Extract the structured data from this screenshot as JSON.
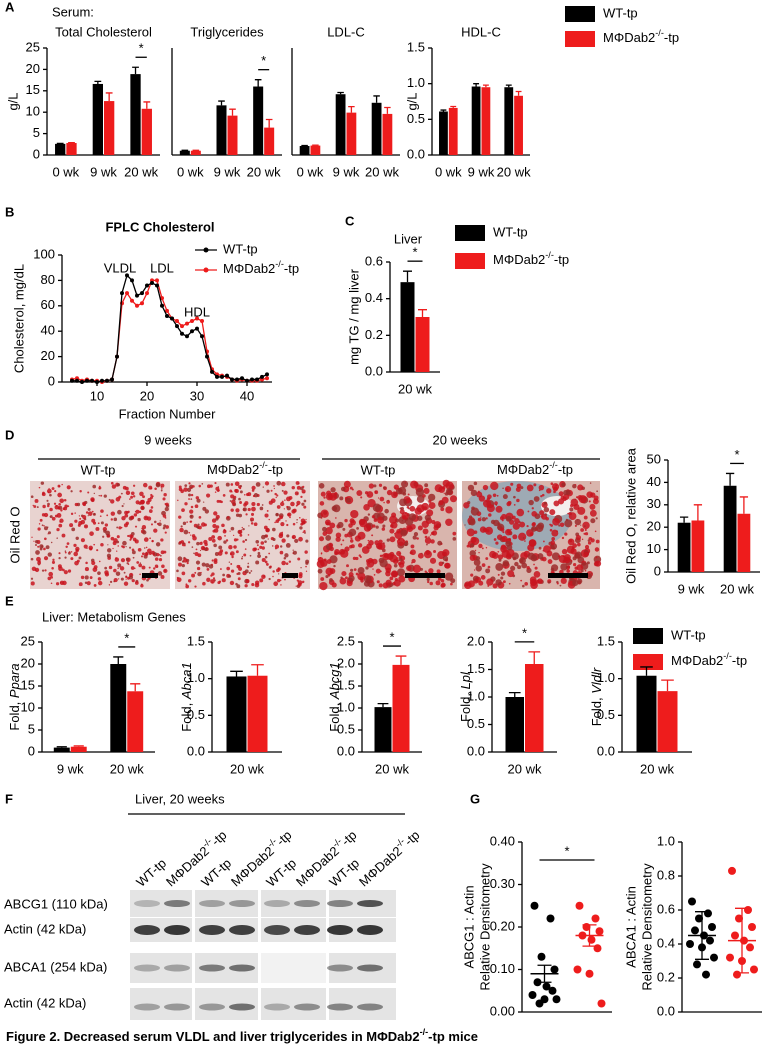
{
  "chart_data": [
    {
      "type": "bar",
      "title": "Total Cholesterol",
      "ylabel": "g/L",
      "categories": [
        "0 wk",
        "9 wk",
        "20 wk"
      ],
      "ylim": [
        0,
        25
      ],
      "yticks": [
        0,
        5,
        10,
        15,
        20,
        25
      ],
      "annotation": "*",
      "series": [
        {
          "color": "#000000",
          "values": [
            2.6,
            16.6,
            18.9
          ],
          "errors": [
            0.1,
            0.6,
            1.6
          ]
        },
        {
          "color": "#ee1c1c",
          "values": [
            2.8,
            12.6,
            10.8
          ],
          "errors": [
            0.1,
            1.9,
            1.6
          ]
        }
      ]
    },
    {
      "type": "bar",
      "title": "Triglycerides",
      "categories": [
        "0 wk",
        "9 wk",
        "20 wk"
      ],
      "ylim": [
        0,
        25
      ],
      "annotation": "*",
      "series": [
        {
          "color": "#000000",
          "values": [
            1.0,
            11.6,
            16.0
          ],
          "errors": [
            0.1,
            1.0,
            1.6
          ]
        },
        {
          "color": "#ee1c1c",
          "values": [
            1.0,
            9.2,
            6.4
          ],
          "errors": [
            0.1,
            1.5,
            1.9
          ]
        }
      ]
    },
    {
      "type": "bar",
      "title": "LDL-C",
      "categories": [
        "0 wk",
        "9 wk",
        "20 wk"
      ],
      "ylim": [
        0,
        25
      ],
      "series": [
        {
          "color": "#000000",
          "values": [
            2.1,
            14.2,
            12.2
          ],
          "errors": [
            0.1,
            0.4,
            1.6
          ]
        },
        {
          "color": "#ee1c1c",
          "values": [
            2.2,
            9.9,
            9.6
          ],
          "errors": [
            0.1,
            1.4,
            1.5
          ]
        }
      ]
    },
    {
      "type": "bar",
      "title": "HDL-C",
      "ylabel": "g/L",
      "categories": [
        "0 wk",
        "9 wk",
        "20 wk"
      ],
      "ylim": [
        0,
        1.5
      ],
      "yticks": [
        {
          "value": 0,
          "label": "0.0"
        },
        0.5,
        {
          "value": 1,
          "label": "1.0"
        },
        1.5
      ],
      "legend": "top-right",
      "series": [
        {
          "name": "WT-tp",
          "color": "#000000",
          "values": [
            0.61,
            0.96,
            0.95
          ],
          "errors": [
            0.02,
            0.04,
            0.03
          ]
        },
        {
          "name": "MΦDab2-/--tp",
          "color": "#ee1c1c",
          "values": [
            0.66,
            0.95,
            0.83
          ],
          "errors": [
            0.02,
            0.03,
            0.06
          ]
        }
      ]
    },
    {
      "type": "line",
      "title": "FPLC Cholesterol",
      "ylabel": "Cholesterol, mg/dL",
      "xlabel": "Fraction Number",
      "xlim": [
        3,
        45
      ],
      "ylim": [
        0,
        100
      ],
      "xticks": [
        10,
        20,
        30,
        40
      ],
      "yticks": [
        0,
        20,
        40,
        60,
        80,
        100
      ],
      "legend": "top-right",
      "annotations": [
        "VLDL",
        "LDL",
        "HDL"
      ],
      "x": [
        5,
        6,
        7,
        8,
        9,
        10,
        11,
        12,
        13,
        14,
        15,
        16,
        17,
        18,
        19,
        20,
        21,
        22,
        23,
        24,
        25,
        26,
        27,
        28,
        29,
        30,
        31,
        32,
        33,
        34,
        35,
        36,
        37,
        38,
        39,
        40,
        41,
        42,
        43,
        44
      ],
      "series": [
        {
          "name": "WT-tp",
          "color": "#000000",
          "values": [
            1,
            1,
            0,
            1,
            1,
            0,
            1,
            1,
            2,
            20,
            70,
            84,
            80,
            68,
            70,
            76,
            78,
            76,
            60,
            52,
            50,
            44,
            38,
            36,
            40,
            42,
            36,
            20,
            8,
            4,
            4,
            5,
            2,
            2,
            3,
            1,
            2,
            2,
            4,
            6
          ]
        },
        {
          "name": "MΦDab2-/--tp",
          "color": "#ee1c1c",
          "values": [
            2,
            3,
            1,
            2,
            1,
            1,
            0,
            1,
            2,
            20,
            62,
            70,
            64,
            60,
            62,
            70,
            80,
            80,
            66,
            56,
            50,
            48,
            44,
            46,
            48,
            50,
            48,
            24,
            10,
            6,
            5,
            4,
            2,
            1,
            2,
            1,
            1,
            1,
            2,
            3
          ]
        }
      ]
    },
    {
      "type": "bar",
      "title": "Liver",
      "ylabel": "mg TG / mg liver",
      "categories": [
        "20 wk"
      ],
      "ylim": [
        0,
        0.6
      ],
      "yticks": [
        {
          "value": 0,
          "label": "0.0"
        },
        0.2,
        0.4,
        0.6
      ],
      "annotation": "*",
      "legend": "top-right",
      "series": [
        {
          "name": "WT-tp",
          "color": "#000000",
          "values": [
            0.49
          ],
          "errors": [
            0.06
          ]
        },
        {
          "name": "MΦDab2-/--tp",
          "color": "#ee1c1c",
          "values": [
            0.3
          ],
          "errors": [
            0.04
          ]
        }
      ]
    },
    {
      "type": "bar",
      "ylabel": "Oil Red O, relative area",
      "categories": [
        "9 wk",
        "20 wk"
      ],
      "ylim": [
        0,
        50
      ],
      "yticks": [
        0,
        10,
        20,
        30,
        40,
        50
      ],
      "annotation": "*",
      "series": [
        {
          "color": "#000000",
          "values": [
            22,
            38.5
          ],
          "errors": [
            2.5,
            5.5
          ]
        },
        {
          "color": "#ee1c1c",
          "values": [
            23,
            26
          ],
          "errors": [
            7,
            7.5
          ]
        }
      ]
    },
    {
      "type": "bar",
      "ylabel": "Fold, Ppara",
      "categories": [
        "9 wk",
        "20 wk"
      ],
      "ylim": [
        0,
        25
      ],
      "yticks": [
        0,
        5,
        10,
        15,
        20,
        25
      ],
      "annotation": "*",
      "series": [
        {
          "color": "#000000",
          "values": [
            1.0,
            20.0
          ],
          "errors": [
            0.2,
            1.6
          ]
        },
        {
          "color": "#ee1c1c",
          "values": [
            1.2,
            13.8
          ],
          "errors": [
            0.2,
            1.7
          ]
        }
      ]
    },
    {
      "type": "bar",
      "ylabel": "Fold, Abca1",
      "categories": [
        "20 wk"
      ],
      "ylim": [
        0,
        1.5
      ],
      "yticks": [
        {
          "value": 0,
          "label": "0.0"
        },
        0.5,
        {
          "value": 1,
          "label": "1.0"
        },
        1.5
      ],
      "series": [
        {
          "color": "#000000",
          "values": [
            1.03
          ],
          "errors": [
            0.07
          ]
        },
        {
          "color": "#ee1c1c",
          "values": [
            1.04
          ],
          "errors": [
            0.15
          ]
        }
      ]
    },
    {
      "type": "bar",
      "ylabel": "Fold, Abcg1",
      "categories": [
        "20 wk"
      ],
      "ylim": [
        0,
        2.5
      ],
      "yticks": [
        {
          "value": 0,
          "label": "0.0"
        },
        0.5,
        {
          "value": 1,
          "label": "1.0"
        },
        1.5,
        {
          "value": 2,
          "label": "2.0"
        },
        2.5
      ],
      "annotation": "*",
      "series": [
        {
          "color": "#000000",
          "values": [
            1.02
          ],
          "errors": [
            0.08
          ]
        },
        {
          "color": "#ee1c1c",
          "values": [
            1.98
          ],
          "errors": [
            0.2
          ]
        }
      ]
    },
    {
      "type": "bar",
      "ylabel": "Fold, Lpl",
      "categories": [
        "20 wk"
      ],
      "ylim": [
        0,
        2.0
      ],
      "yticks": [
        {
          "value": 0,
          "label": "0.0"
        },
        0.5,
        {
          "value": 1,
          "label": "1.0"
        },
        1.5,
        {
          "value": 2,
          "label": "2.0"
        }
      ],
      "annotation": "*",
      "series": [
        {
          "color": "#000000",
          "values": [
            1.0
          ],
          "errors": [
            0.08
          ]
        },
        {
          "color": "#ee1c1c",
          "values": [
            1.6
          ],
          "errors": [
            0.22
          ]
        }
      ]
    },
    {
      "type": "bar",
      "ylabel": "Fold, Vldlr",
      "categories": [
        "20 wk"
      ],
      "ylim": [
        0,
        1.5
      ],
      "yticks": [
        {
          "value": 0,
          "label": "0.0"
        },
        0.5,
        {
          "value": 1,
          "label": "1.0"
        },
        1.5
      ],
      "legend": "top-right",
      "series": [
        {
          "name": "WT-tp",
          "color": "#000000",
          "values": [
            1.04
          ],
          "errors": [
            0.12
          ]
        },
        {
          "name": "MΦDab2-/--tp",
          "color": "#ee1c1c",
          "values": [
            0.83
          ],
          "errors": [
            0.15
          ]
        }
      ]
    },
    {
      "type": "dotplot",
      "ylabel": [
        "ABCG1 : Actin",
        "Relative Densitometry"
      ],
      "ylim": [
        0,
        0.4
      ],
      "yticks": [
        {
          "value": 0,
          "label": "0.00"
        },
        {
          "value": 0.1,
          "label": "0.10"
        },
        {
          "value": 0.2,
          "label": "0.20"
        },
        {
          "value": 0.3,
          "label": "0.30"
        },
        {
          "value": 0.4,
          "label": "0.40"
        }
      ],
      "annotation": "*",
      "series": [
        {
          "color": "#000000",
          "values": [
            0.25,
            0.22,
            0.13,
            0.1,
            0.07,
            0.06,
            0.05,
            0.04,
            0.03,
            0.03,
            0.02
          ],
          "mean": 0.09,
          "error": 0.02
        },
        {
          "color": "#ee1c1c",
          "values": [
            0.25,
            0.22,
            0.2,
            0.19,
            0.18,
            0.17,
            0.15,
            0.1,
            0.09,
            0.02
          ],
          "mean": 0.18,
          "error": 0.025
        }
      ]
    },
    {
      "type": "dotplot",
      "ylabel": [
        "ABCA1 : Actin",
        "Relative Densitometry"
      ],
      "ylim": [
        0,
        1.0
      ],
      "yticks": [
        {
          "value": 0,
          "label": "0.0"
        },
        0.2,
        0.4,
        0.6,
        0.8,
        {
          "value": 1,
          "label": "1.0"
        }
      ],
      "series": [
        {
          "color": "#000000",
          "values": [
            0.65,
            0.58,
            0.55,
            0.5,
            0.48,
            0.45,
            0.42,
            0.4,
            0.38,
            0.32,
            0.28,
            0.22
          ],
          "mean": 0.45,
          "error": 0.14
        },
        {
          "color": "#ee1c1c",
          "values": [
            0.83,
            0.6,
            0.55,
            0.5,
            0.45,
            0.42,
            0.38,
            0.32,
            0.3,
            0.25,
            0.22
          ],
          "mean": 0.42,
          "error": 0.19
        }
      ]
    }
  ],
  "figure": {
    "panels": [
      "A",
      "B",
      "C",
      "D",
      "E",
      "F",
      "G"
    ],
    "serum_label": "Serum:",
    "genes_title": "Liver: Metabolism Genes",
    "caption": "Figure 2. Decreased serum VLDL and liver triglycerides in MΦDab2-/--tp mice"
  },
  "panel_d": {
    "headers": [
      "9 weeks",
      "20 weeks"
    ],
    "groups": [
      "WT-tp",
      "MΦDab2-/--tp",
      "WT-tp",
      "MΦDab2-/--tp"
    ],
    "stain": "Oil Red O"
  },
  "panel_f": {
    "title": "Liver, 20 weeks",
    "lanes": [
      "WT-tp",
      "MΦDab2-/--tp",
      "WT-tp",
      "MΦDab2-/--tp",
      "WT-tp",
      "MΦDab2-/--tp",
      "WT-tp",
      "MΦDab2-/--tp"
    ],
    "rows": [
      "ABCG1 (110 kDa)",
      "Actin (42 kDa)",
      "ABCA1 (254 kDa)",
      "Actin (42 kDa)"
    ]
  }
}
